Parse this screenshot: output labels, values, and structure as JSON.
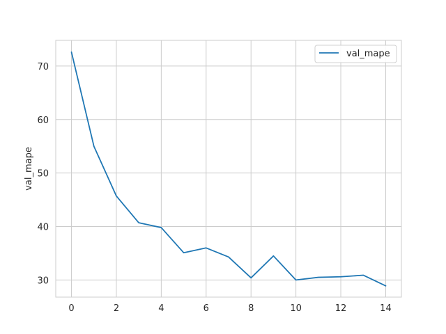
{
  "chart_data": {
    "type": "line",
    "title": "",
    "xlabel": "",
    "ylabel": "val_mape",
    "xlim": [
      -0.7,
      14.7
    ],
    "ylim": [
      26.8,
      74.8
    ],
    "xticks": [
      0,
      2,
      4,
      6,
      8,
      10,
      12,
      14
    ],
    "yticks": [
      30,
      40,
      50,
      60,
      70
    ],
    "grid": true,
    "legend_position": "top-right",
    "series": [
      {
        "name": "val_mape",
        "color": "#1f77b4",
        "x": [
          0,
          1,
          2,
          3,
          4,
          5,
          6,
          7,
          8,
          9,
          10,
          11,
          12,
          13,
          14
        ],
        "values": [
          72.6,
          55.0,
          45.7,
          40.7,
          39.8,
          35.1,
          36.0,
          34.3,
          30.4,
          34.5,
          30.0,
          30.5,
          30.6,
          30.9,
          28.9
        ]
      }
    ]
  }
}
